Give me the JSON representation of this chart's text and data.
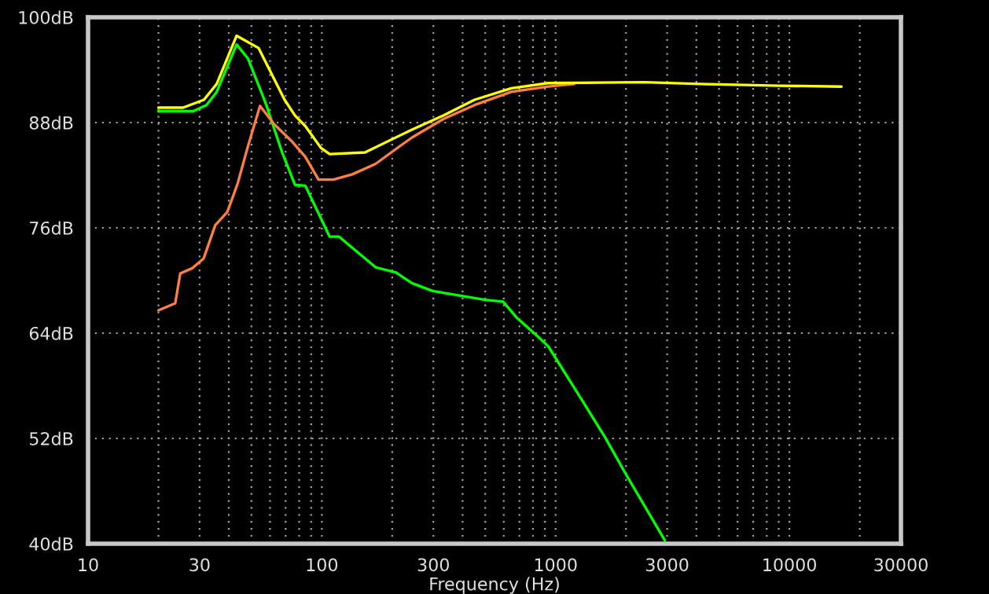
{
  "chart_data": {
    "type": "line",
    "xlabel": "Frequency (Hz)",
    "log": "x",
    "grid": true,
    "line_style": "solid",
    "marker": "none",
    "xlim": [
      10,
      30000
    ],
    "ylim": [
      40,
      100
    ],
    "xticks": [
      10,
      {
        "value": 20,
        "label": null
      },
      30,
      {
        "value": 40,
        "label": null
      },
      {
        "value": 50,
        "label": null
      },
      {
        "value": 60,
        "label": null
      },
      {
        "value": 70,
        "label": null
      },
      {
        "value": 80,
        "label": null
      },
      {
        "value": 90,
        "label": null
      },
      100,
      {
        "value": 200,
        "label": null
      },
      300,
      {
        "value": 400,
        "label": null
      },
      {
        "value": 500,
        "label": null
      },
      {
        "value": 600,
        "label": null
      },
      {
        "value": 700,
        "label": null
      },
      {
        "value": 800,
        "label": null
      },
      {
        "value": 900,
        "label": null
      },
      1000,
      {
        "value": 2000,
        "label": null
      },
      3000,
      {
        "value": 4000,
        "label": null
      },
      {
        "value": 5000,
        "label": null
      },
      {
        "value": 6000,
        "label": null
      },
      {
        "value": 7000,
        "label": null
      },
      {
        "value": 8000,
        "label": null
      },
      {
        "value": 9000,
        "label": null
      },
      10000,
      {
        "value": 20000,
        "label": null
      },
      30000
    ],
    "yticks": [
      {
        "value": 40,
        "label": "40dB"
      },
      {
        "value": 52,
        "label": "52dB"
      },
      {
        "value": 64,
        "label": "64dB"
      },
      {
        "value": 76,
        "label": "76dB"
      },
      {
        "value": 88,
        "label": "88dB"
      },
      {
        "value": 100,
        "label": "100dB"
      }
    ],
    "series": [
      {
        "color": "#00ff00",
        "x": [
          20,
          28.2,
          32.1,
          35.5,
          43.2,
          48.3,
          57.9,
          67.6,
          76.8,
          85,
          108,
          118.5,
          170,
          208,
          243,
          298,
          500,
          596,
          680,
          832,
          930,
          1260,
          1630,
          2000,
          2930
        ],
        "values": [
          89.3,
          89.3,
          90.0,
          91.5,
          96.9,
          95.3,
          90.0,
          84.6,
          80.9,
          80.8,
          75.0,
          75.0,
          71.5,
          70.9,
          69.7,
          68.8,
          67.8,
          67.6,
          65.8,
          63.7,
          62.5,
          56.9,
          52.1,
          47.9,
          40.4
        ]
      },
      {
        "color": "#ff7f40",
        "x": [
          20,
          23.6,
          24.8,
          27.9,
          31.2,
          35,
          39.4,
          43.7,
          48.3,
          54.4,
          62.6,
          74.8,
          85,
          96.8,
          112,
          135,
          170,
          198,
          243,
          331,
          450,
          646,
          930,
          1200
        ],
        "values": [
          66.6,
          67.4,
          70.8,
          71.4,
          72.5,
          76.3,
          77.8,
          81.1,
          85.3,
          89.9,
          87.8,
          85.8,
          84.1,
          81.5,
          81.5,
          82.1,
          83.3,
          84.6,
          86.3,
          88.4,
          90.0,
          91.5,
          92.1,
          92.4
        ]
      },
      {
        "color": "#ffff00",
        "x": [
          20,
          25.5,
          31.3,
          35.5,
          43.2,
          53.6,
          69.3,
          76.8,
          85,
          99.2,
          108,
          153,
          243,
          331,
          450,
          646,
          930,
          2400,
          4140,
          9090,
          16700
        ],
        "values": [
          89.7,
          89.7,
          90.6,
          92.4,
          97.9,
          96.5,
          90.6,
          88.8,
          87.6,
          85.1,
          84.4,
          84.6,
          87.2,
          88.8,
          90.6,
          91.9,
          92.5,
          92.6,
          92.4,
          92.2,
          92.1
        ]
      }
    ]
  }
}
